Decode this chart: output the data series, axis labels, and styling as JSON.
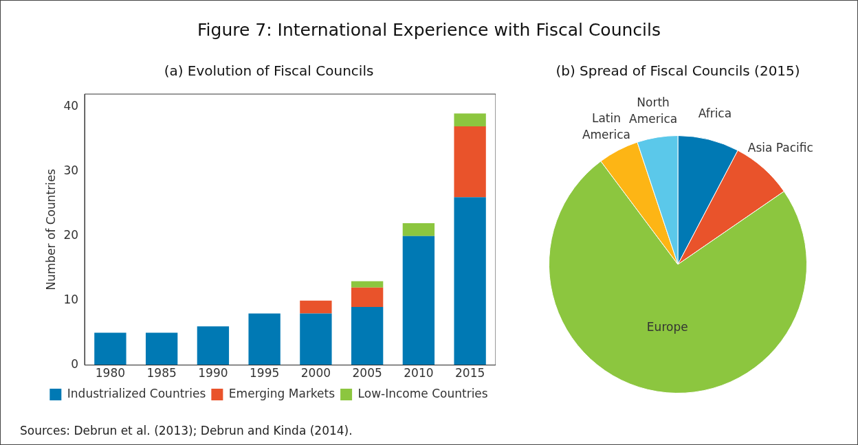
{
  "chart_data": [
    {
      "type": "other",
      "title": "Figure 7: International Experience with Fiscal Councils",
      "annotations": [
        "Sources: Debrun et al. (2013); Debrun and Kinda (2014)."
      ]
    },
    {
      "type": "bar",
      "title": "(a) Evolution of Fiscal Councils",
      "ylabel": "Number of Countries",
      "categories": [
        "1980",
        "1985",
        "1990",
        "1995",
        "2000",
        "2005",
        "2010",
        "2015"
      ],
      "stacked": true,
      "series": [
        {
          "name": "Industrialized Countries",
          "color": "#0079b4",
          "values": [
            5,
            5,
            6,
            8,
            8,
            9,
            20,
            26
          ]
        },
        {
          "name": "Emerging Markets",
          "color": "#e9532b",
          "values": [
            null,
            null,
            null,
            null,
            2,
            3,
            null,
            11
          ]
        },
        {
          "name": "Low-Income Countries",
          "color": "#8cc63f",
          "values": [
            null,
            null,
            null,
            null,
            null,
            1,
            2,
            2
          ]
        }
      ],
      "ylim": [
        0,
        42
      ],
      "yticks": [
        0,
        10,
        20,
        30,
        40
      ],
      "grid": false,
      "legend": "bottom"
    },
    {
      "type": "pie",
      "title": "(b) Spread of Fiscal Councils (2015)",
      "categories": [
        "Africa",
        "Asia Pacific",
        "Europe",
        "Latin America",
        "North America"
      ],
      "values": [
        7.7,
        7.7,
        74.4,
        5.1,
        5.1
      ],
      "colors": [
        "#0079b4",
        "#e9532b",
        "#8cc63f",
        "#fdb515",
        "#5bc8ea"
      ],
      "legend": false
    }
  ]
}
